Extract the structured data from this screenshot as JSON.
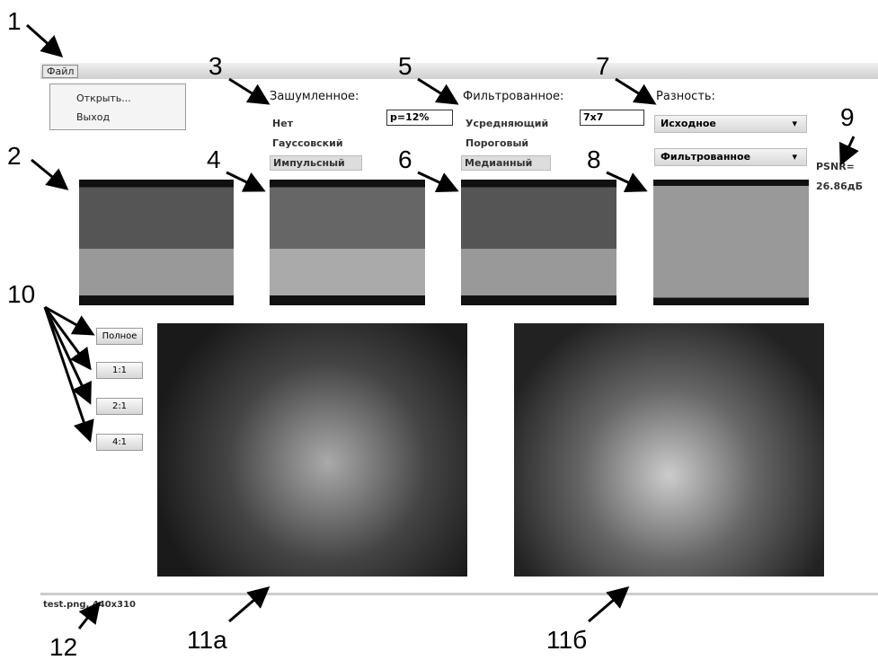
{
  "annotations": [
    "1",
    "2",
    "3",
    "4",
    "5",
    "6",
    "7",
    "8",
    "9",
    "10",
    "11а",
    "11б",
    "12"
  ],
  "menu": {
    "title": "Файл",
    "items": [
      "Открыть...",
      "Выход"
    ]
  },
  "noisy": {
    "label": "Зашумленное:",
    "options": [
      "Нет",
      "Гауссовский",
      "Импульсный"
    ],
    "param": "p=12%"
  },
  "filtered": {
    "label": "Фильтрованное:",
    "options": [
      "Усредняющий",
      "Пороговый",
      "Медианный"
    ],
    "param": "7x7"
  },
  "difference": {
    "label": "Разность:",
    "selects": [
      "Исходное",
      "Фильтрованное"
    ]
  },
  "psnr": [
    "PSNR=",
    "26.86дБ"
  ],
  "zoom_buttons": [
    "Полное",
    "1:1",
    "2:1",
    "4:1"
  ],
  "status": "test.png, 440x310"
}
